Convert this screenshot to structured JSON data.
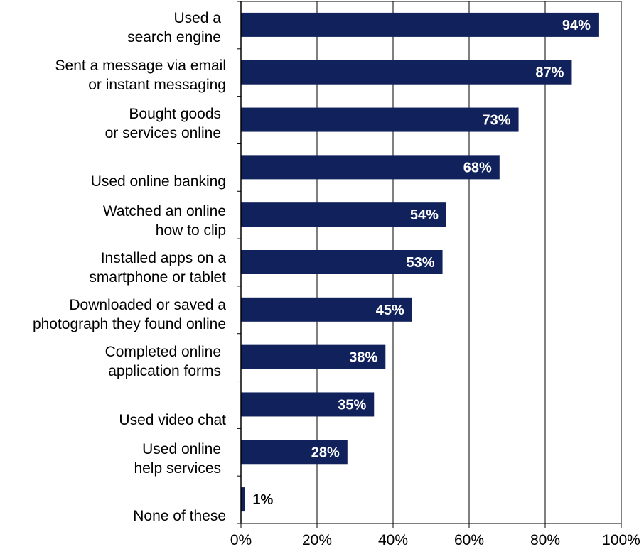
{
  "chart_data": {
    "type": "bar",
    "orientation": "horizontal",
    "categories": [
      [
        "Used a",
        "search engine"
      ],
      [
        "Sent a message via email",
        "or instant messaging"
      ],
      [
        "Bought goods",
        "or services online"
      ],
      [
        "Used online banking"
      ],
      [
        "Watched an online",
        "how to clip"
      ],
      [
        "Installed apps on a",
        "smartphone or tablet"
      ],
      [
        "Downloaded or saved a",
        "photograph they found online"
      ],
      [
        "Completed online",
        "application forms"
      ],
      [
        "Used video chat"
      ],
      [
        "Used online",
        "help services"
      ],
      [
        "None of these"
      ]
    ],
    "values": [
      94,
      87,
      73,
      68,
      54,
      53,
      45,
      38,
      35,
      28,
      1
    ],
    "value_labels": [
      "94%",
      "87%",
      "73%",
      "68%",
      "54%",
      "53%",
      "45%",
      "38%",
      "35%",
      "28%",
      "1%"
    ],
    "xlim": [
      0,
      100
    ],
    "xticks": [
      0,
      20,
      40,
      60,
      80,
      100
    ],
    "xtick_labels": [
      "0%",
      "20%",
      "40%",
      "60%",
      "80%",
      "100%"
    ],
    "grid": "vertical",
    "bar_color": "#10215C",
    "value_label_color_inside": "#FFFFFF",
    "value_label_color_outside": "#000000"
  }
}
